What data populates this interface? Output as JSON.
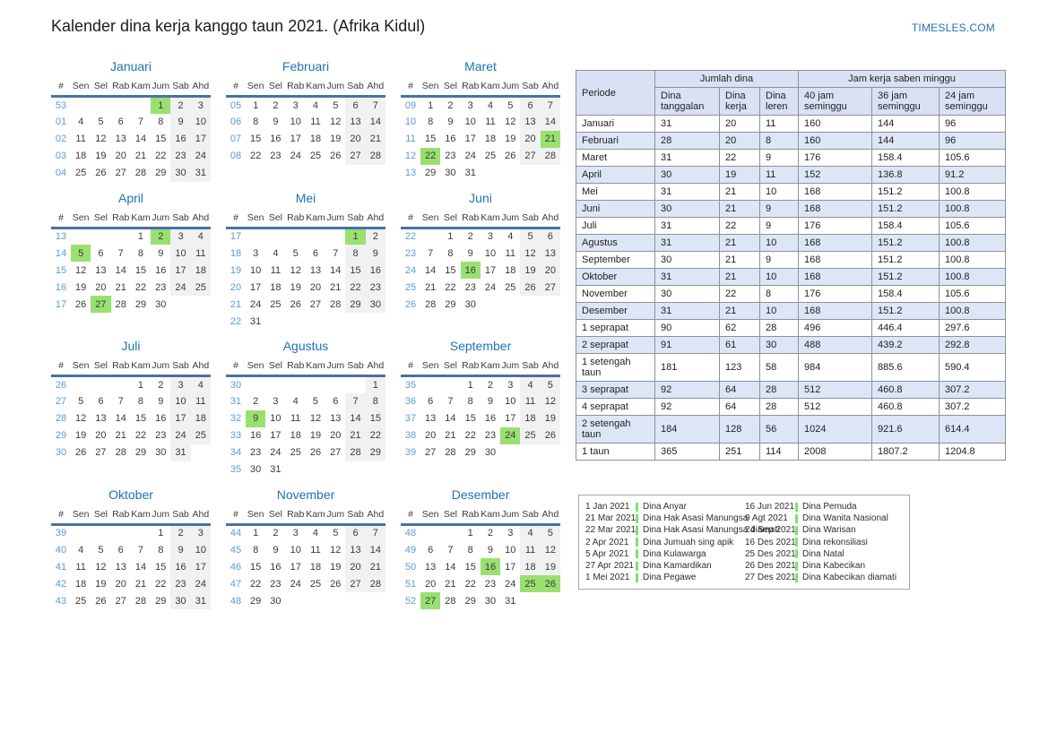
{
  "page": {
    "title": "Kalender dina kerja kanggo taun 2021. (Afrika Kidul)",
    "site": "TIMESLES.COM"
  },
  "colors": {
    "accent_blue": "#2272b9",
    "week_number_blue": "#5b9bd5",
    "holiday_green": "#9ae070",
    "weekend_gray": "#f1f1f1",
    "table_header_bg": "#dbe1f4",
    "table_alt_row_bg": "#dce6f6",
    "header_underline": "#4a72a2"
  },
  "calendar": {
    "day_headers": [
      "#",
      "Sen",
      "Sel",
      "Rab",
      "Kam",
      "Jum",
      "Sab",
      "Ahd"
    ],
    "months": [
      {
        "name": "Januari",
        "highlights": [
          1
        ],
        "weeks": [
          [
            "53",
            "",
            "",
            "",
            "",
            "1",
            "2",
            "3"
          ],
          [
            "01",
            "4",
            "5",
            "6",
            "7",
            "8",
            "9",
            "10"
          ],
          [
            "02",
            "11",
            "12",
            "13",
            "14",
            "15",
            "16",
            "17"
          ],
          [
            "03",
            "18",
            "19",
            "20",
            "21",
            "22",
            "23",
            "24"
          ],
          [
            "04",
            "25",
            "26",
            "27",
            "28",
            "29",
            "30",
            "31"
          ]
        ]
      },
      {
        "name": "Februari",
        "highlights": [],
        "weeks": [
          [
            "05",
            "1",
            "2",
            "3",
            "4",
            "5",
            "6",
            "7"
          ],
          [
            "06",
            "8",
            "9",
            "10",
            "11",
            "12",
            "13",
            "14"
          ],
          [
            "07",
            "15",
            "16",
            "17",
            "18",
            "19",
            "20",
            "21"
          ],
          [
            "08",
            "22",
            "23",
            "24",
            "25",
            "26",
            "27",
            "28"
          ]
        ]
      },
      {
        "name": "Maret",
        "highlights": [
          21,
          22
        ],
        "weeks": [
          [
            "09",
            "1",
            "2",
            "3",
            "4",
            "5",
            "6",
            "7"
          ],
          [
            "10",
            "8",
            "9",
            "10",
            "11",
            "12",
            "13",
            "14"
          ],
          [
            "11",
            "15",
            "16",
            "17",
            "18",
            "19",
            "20",
            "21"
          ],
          [
            "12",
            "22",
            "23",
            "24",
            "25",
            "26",
            "27",
            "28"
          ],
          [
            "13",
            "29",
            "30",
            "31",
            "",
            "",
            "",
            ""
          ]
        ]
      },
      {
        "name": "April",
        "highlights": [
          2,
          5,
          27
        ],
        "weeks": [
          [
            "13",
            "",
            "",
            "",
            "1",
            "2",
            "3",
            "4"
          ],
          [
            "14",
            "5",
            "6",
            "7",
            "8",
            "9",
            "10",
            "11"
          ],
          [
            "15",
            "12",
            "13",
            "14",
            "15",
            "16",
            "17",
            "18"
          ],
          [
            "16",
            "19",
            "20",
            "21",
            "22",
            "23",
            "24",
            "25"
          ],
          [
            "17",
            "26",
            "27",
            "28",
            "29",
            "30",
            "",
            ""
          ]
        ]
      },
      {
        "name": "Mei",
        "highlights": [
          1
        ],
        "weeks": [
          [
            "17",
            "",
            "",
            "",
            "",
            "",
            "1",
            "2"
          ],
          [
            "18",
            "3",
            "4",
            "5",
            "6",
            "7",
            "8",
            "9"
          ],
          [
            "19",
            "10",
            "11",
            "12",
            "13",
            "14",
            "15",
            "16"
          ],
          [
            "20",
            "17",
            "18",
            "19",
            "20",
            "21",
            "22",
            "23"
          ],
          [
            "21",
            "24",
            "25",
            "26",
            "27",
            "28",
            "29",
            "30"
          ],
          [
            "22",
            "31",
            "",
            "",
            "",
            "",
            "",
            ""
          ]
        ]
      },
      {
        "name": "Juni",
        "highlights": [
          16
        ],
        "weeks": [
          [
            "22",
            "",
            "1",
            "2",
            "3",
            "4",
            "5",
            "6"
          ],
          [
            "23",
            "7",
            "8",
            "9",
            "10",
            "11",
            "12",
            "13"
          ],
          [
            "24",
            "14",
            "15",
            "16",
            "17",
            "18",
            "19",
            "20"
          ],
          [
            "25",
            "21",
            "22",
            "23",
            "24",
            "25",
            "26",
            "27"
          ],
          [
            "26",
            "28",
            "29",
            "30",
            "",
            "",
            "",
            ""
          ]
        ]
      },
      {
        "name": "Juli",
        "highlights": [],
        "weeks": [
          [
            "26",
            "",
            "",
            "",
            "1",
            "2",
            "3",
            "4"
          ],
          [
            "27",
            "5",
            "6",
            "7",
            "8",
            "9",
            "10",
            "11"
          ],
          [
            "28",
            "12",
            "13",
            "14",
            "15",
            "16",
            "17",
            "18"
          ],
          [
            "29",
            "19",
            "20",
            "21",
            "22",
            "23",
            "24",
            "25"
          ],
          [
            "30",
            "26",
            "27",
            "28",
            "29",
            "30",
            "31",
            ""
          ]
        ]
      },
      {
        "name": "Agustus",
        "highlights": [
          9
        ],
        "weeks": [
          [
            "30",
            "",
            "",
            "",
            "",
            "",
            "",
            "1"
          ],
          [
            "31",
            "2",
            "3",
            "4",
            "5",
            "6",
            "7",
            "8"
          ],
          [
            "32",
            "9",
            "10",
            "11",
            "12",
            "13",
            "14",
            "15"
          ],
          [
            "33",
            "16",
            "17",
            "18",
            "19",
            "20",
            "21",
            "22"
          ],
          [
            "34",
            "23",
            "24",
            "25",
            "26",
            "27",
            "28",
            "29"
          ],
          [
            "35",
            "30",
            "31",
            "",
            "",
            "",
            "",
            ""
          ]
        ]
      },
      {
        "name": "September",
        "highlights": [
          24
        ],
        "weeks": [
          [
            "35",
            "",
            "",
            "1",
            "2",
            "3",
            "4",
            "5"
          ],
          [
            "36",
            "6",
            "7",
            "8",
            "9",
            "10",
            "11",
            "12"
          ],
          [
            "37",
            "13",
            "14",
            "15",
            "16",
            "17",
            "18",
            "19"
          ],
          [
            "38",
            "20",
            "21",
            "22",
            "23",
            "24",
            "25",
            "26"
          ],
          [
            "39",
            "27",
            "28",
            "29",
            "30",
            "",
            "",
            ""
          ]
        ]
      },
      {
        "name": "Oktober",
        "highlights": [],
        "weeks": [
          [
            "39",
            "",
            "",
            "",
            "",
            "1",
            "2",
            "3"
          ],
          [
            "40",
            "4",
            "5",
            "6",
            "7",
            "8",
            "9",
            "10"
          ],
          [
            "41",
            "11",
            "12",
            "13",
            "14",
            "15",
            "16",
            "17"
          ],
          [
            "42",
            "18",
            "19",
            "20",
            "21",
            "22",
            "23",
            "24"
          ],
          [
            "43",
            "25",
            "26",
            "27",
            "28",
            "29",
            "30",
            "31"
          ]
        ]
      },
      {
        "name": "November",
        "highlights": [],
        "weeks": [
          [
            "44",
            "1",
            "2",
            "3",
            "4",
            "5",
            "6",
            "7"
          ],
          [
            "45",
            "8",
            "9",
            "10",
            "11",
            "12",
            "13",
            "14"
          ],
          [
            "46",
            "15",
            "16",
            "17",
            "18",
            "19",
            "20",
            "21"
          ],
          [
            "47",
            "22",
            "23",
            "24",
            "25",
            "26",
            "27",
            "28"
          ],
          [
            "48",
            "29",
            "30",
            "",
            "",
            "",
            "",
            ""
          ]
        ]
      },
      {
        "name": "Desember",
        "highlights": [
          16,
          25,
          26,
          27
        ],
        "weeks": [
          [
            "48",
            "",
            "",
            "1",
            "2",
            "3",
            "4",
            "5"
          ],
          [
            "49",
            "6",
            "7",
            "8",
            "9",
            "10",
            "11",
            "12"
          ],
          [
            "50",
            "13",
            "14",
            "15",
            "16",
            "17",
            "18",
            "19"
          ],
          [
            "51",
            "20",
            "21",
            "22",
            "23",
            "24",
            "25",
            "26"
          ],
          [
            "52",
            "27",
            "28",
            "29",
            "30",
            "31",
            "",
            ""
          ]
        ]
      }
    ]
  },
  "work_table": {
    "header": {
      "periode": "Periode",
      "group1": "Jumlah dina",
      "group2": "Jam kerja saben minggu",
      "cols": [
        "Dina tanggalan",
        "Dina kerja",
        "Dina leren",
        "40 jam seminggu",
        "36 jam seminggu",
        "24 jam seminggu"
      ]
    },
    "rows": [
      {
        "label": "Januari",
        "values": [
          "31",
          "20",
          "11",
          "160",
          "144",
          "96"
        ]
      },
      {
        "label": "Februari",
        "values": [
          "28",
          "20",
          "8",
          "160",
          "144",
          "96"
        ]
      },
      {
        "label": "Maret",
        "values": [
          "31",
          "22",
          "9",
          "176",
          "158.4",
          "105.6"
        ]
      },
      {
        "label": "April",
        "values": [
          "30",
          "19",
          "11",
          "152",
          "136.8",
          "91.2"
        ]
      },
      {
        "label": "Mei",
        "values": [
          "31",
          "21",
          "10",
          "168",
          "151.2",
          "100.8"
        ]
      },
      {
        "label": "Juni",
        "values": [
          "30",
          "21",
          "9",
          "168",
          "151.2",
          "100.8"
        ]
      },
      {
        "label": "Juli",
        "values": [
          "31",
          "22",
          "9",
          "176",
          "158.4",
          "105.6"
        ]
      },
      {
        "label": "Agustus",
        "values": [
          "31",
          "21",
          "10",
          "168",
          "151.2",
          "100.8"
        ]
      },
      {
        "label": "September",
        "values": [
          "30",
          "21",
          "9",
          "168",
          "151.2",
          "100.8"
        ]
      },
      {
        "label": "Oktober",
        "values": [
          "31",
          "21",
          "10",
          "168",
          "151.2",
          "100.8"
        ]
      },
      {
        "label": "November",
        "values": [
          "30",
          "22",
          "8",
          "176",
          "158.4",
          "105.6"
        ]
      },
      {
        "label": "Desember",
        "values": [
          "31",
          "21",
          "10",
          "168",
          "151.2",
          "100.8"
        ]
      },
      {
        "label": "1 seprapat",
        "values": [
          "90",
          "62",
          "28",
          "496",
          "446.4",
          "297.6"
        ]
      },
      {
        "label": "2 seprapat",
        "values": [
          "91",
          "61",
          "30",
          "488",
          "439.2",
          "292.8"
        ]
      },
      {
        "label": "1 setengah taun",
        "values": [
          "181",
          "123",
          "58",
          "984",
          "885.6",
          "590.4"
        ]
      },
      {
        "label": "3 seprapat",
        "values": [
          "92",
          "64",
          "28",
          "512",
          "460.8",
          "307.2"
        ]
      },
      {
        "label": "4 seprapat",
        "values": [
          "92",
          "64",
          "28",
          "512",
          "460.8",
          "307.2"
        ]
      },
      {
        "label": "2 setengah taun",
        "values": [
          "184",
          "128",
          "56",
          "1024",
          "921.6",
          "614.4"
        ]
      },
      {
        "label": "1 taun",
        "values": [
          "365",
          "251",
          "114",
          "2008",
          "1807.2",
          "1204.8"
        ]
      }
    ]
  },
  "holidays": {
    "left": [
      {
        "date": "1 Jan 2021",
        "name": "Dina Anyar"
      },
      {
        "date": "21 Mar 2021",
        "name": "Dina Hak Asasi Manungsa"
      },
      {
        "date": "22 Mar 2021",
        "name": "Dina Hak Asasi Manungsa diamati"
      },
      {
        "date": "2 Apr 2021",
        "name": "Dina Jumuah sing apik"
      },
      {
        "date": "5 Apr 2021",
        "name": "Dina Kulawarga"
      },
      {
        "date": "27 Apr 2021",
        "name": "Dina Kamardikan"
      },
      {
        "date": "1 Mei 2021",
        "name": "Dina Pegawe"
      }
    ],
    "right": [
      {
        "date": "16 Jun 2021",
        "name": "Dina Pemuda"
      },
      {
        "date": "9 Agt 2021",
        "name": "Dina Wanita Nasional"
      },
      {
        "date": "24 Sep 2021",
        "name": "Dina Warisan"
      },
      {
        "date": "16 Des 2021",
        "name": "Dina rekonsiliasi"
      },
      {
        "date": "25 Des 2021",
        "name": "Dina Natal"
      },
      {
        "date": "26 Des 2021",
        "name": "Dina Kabecikan"
      },
      {
        "date": "27 Des 2021",
        "name": "Dina Kabecikan diamati"
      }
    ]
  }
}
